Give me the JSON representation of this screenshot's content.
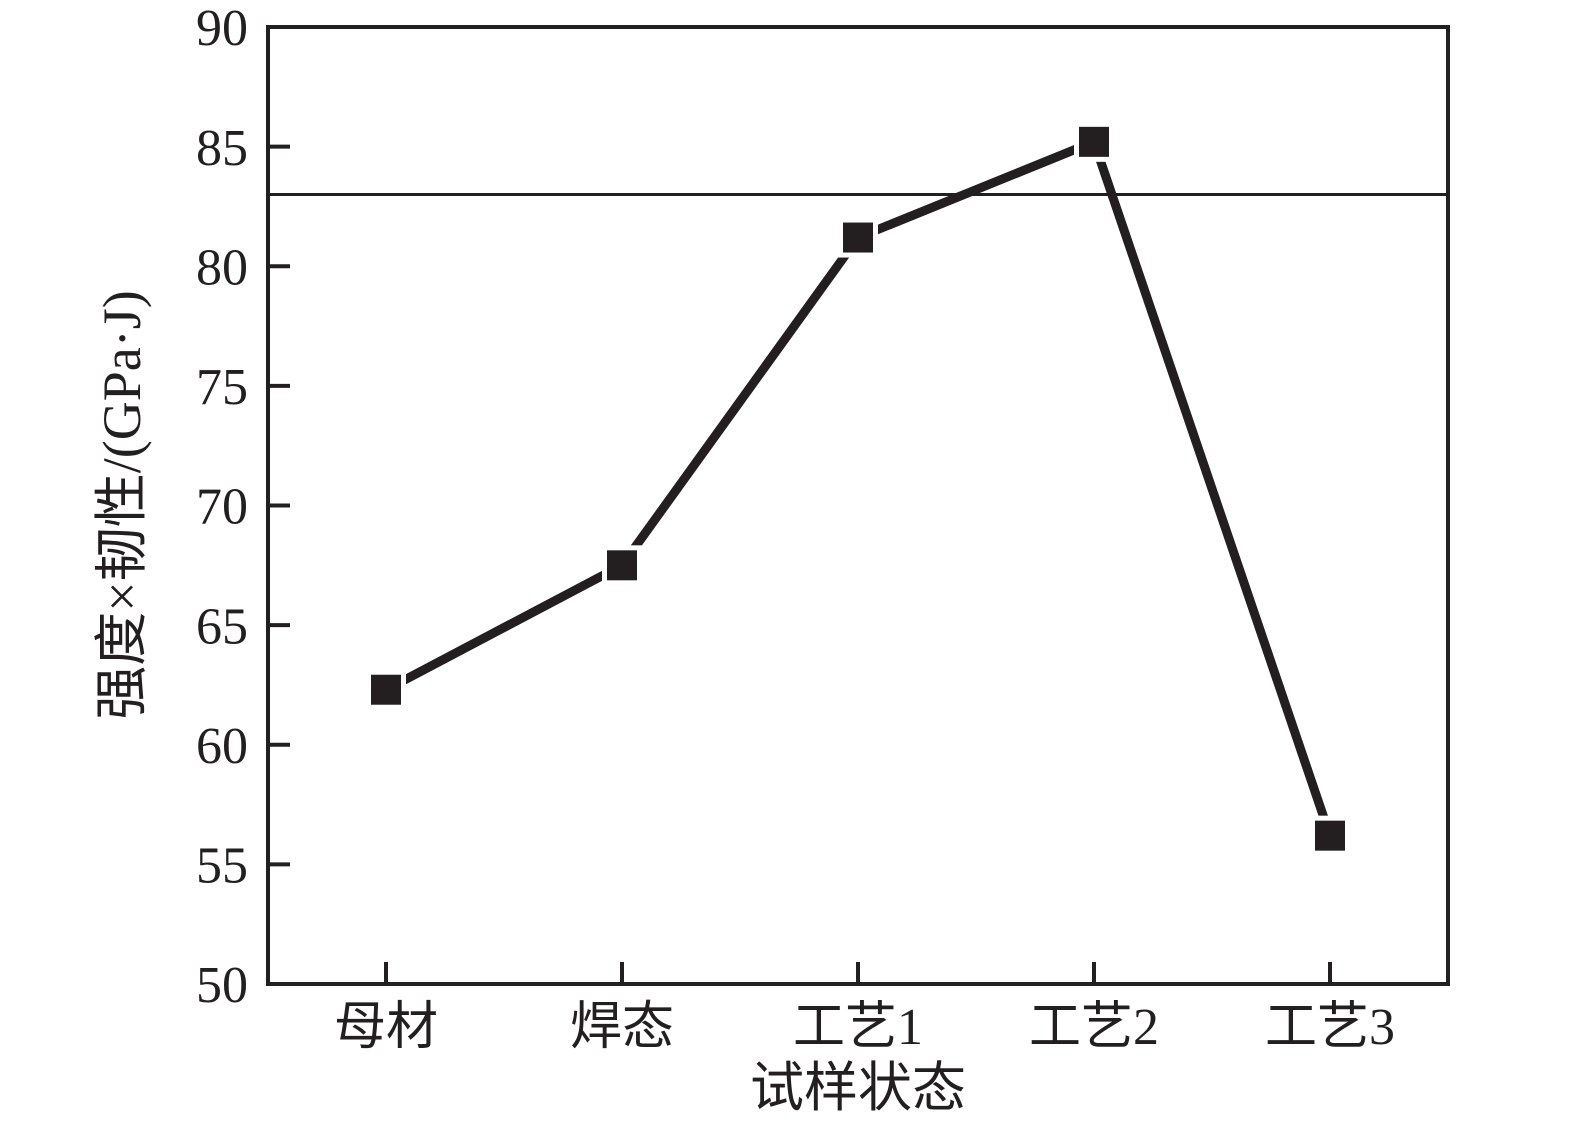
{
  "figure": {
    "background": "#ffffff",
    "ink_color": "#231f20"
  },
  "chart_data": {
    "type": "line",
    "title": "",
    "xlabel": "试样状态",
    "ylabel": "强度×韧性/(GPa·J)",
    "categories": [
      "母材",
      "焊态",
      "工艺1",
      "工艺2",
      "工艺3"
    ],
    "series": [
      {
        "name": "强度×韧性",
        "values": [
          62.3,
          67.5,
          81.2,
          85.2,
          56.2
        ],
        "marker": "square",
        "color": "#231f20"
      }
    ],
    "reference_line": {
      "orientation": "horizontal",
      "value": 83
    },
    "ylim": [
      50,
      90
    ],
    "yticks": [
      50,
      55,
      60,
      65,
      70,
      75,
      80,
      85,
      90
    ],
    "grid": false,
    "legend": false,
    "frame": "box"
  }
}
